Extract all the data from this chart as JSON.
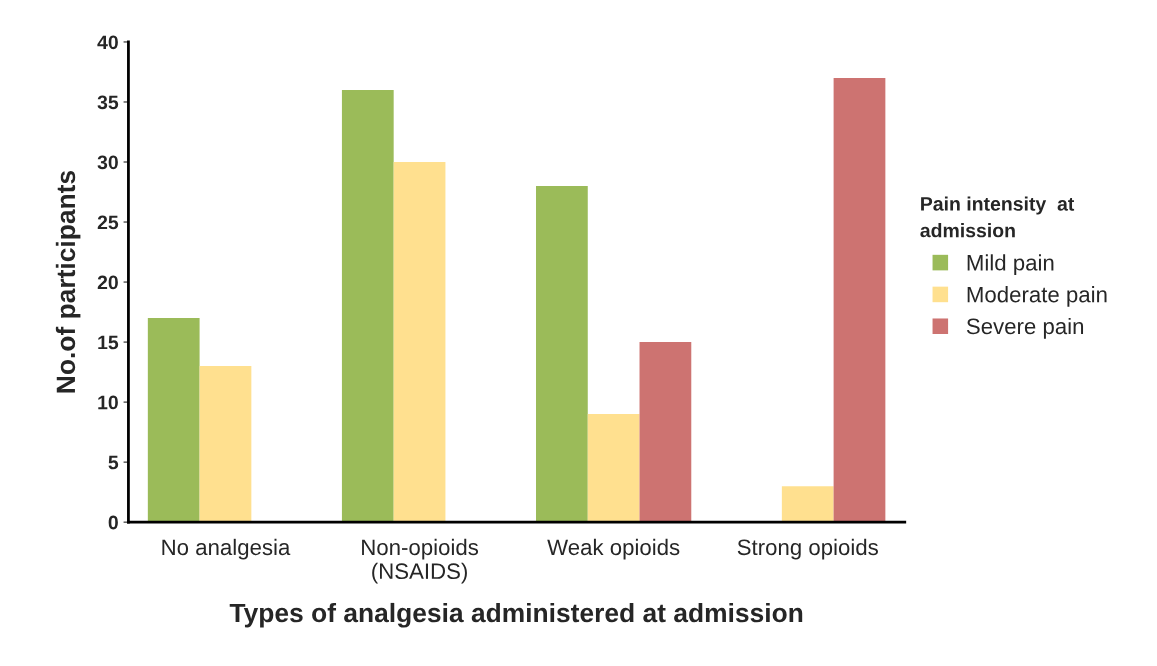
{
  "chart_data": {
    "type": "bar",
    "xlabel": "Types of analgesia administered at admission",
    "ylabel": "No.of participants",
    "legend_title": "Pain intensity  at admission",
    "categories": [
      "No analgesia",
      "Non-opioids\n(NSAIDS)",
      "Weak opioids",
      "Strong opioids"
    ],
    "series": [
      {
        "name": "Mild pain",
        "color": "#9bbb59",
        "values": [
          17,
          36,
          28,
          null
        ]
      },
      {
        "name": "Moderate pain",
        "color": "#ffe08f",
        "values": [
          13,
          30,
          9,
          3
        ]
      },
      {
        "name": "Severe pain",
        "color": "#cd7371",
        "values": [
          null,
          null,
          15,
          37
        ]
      }
    ],
    "ylim": [
      0,
      40
    ],
    "yticks": [
      0,
      5,
      10,
      15,
      20,
      25,
      30,
      35,
      40
    ],
    "grid": false,
    "legend": "right"
  }
}
